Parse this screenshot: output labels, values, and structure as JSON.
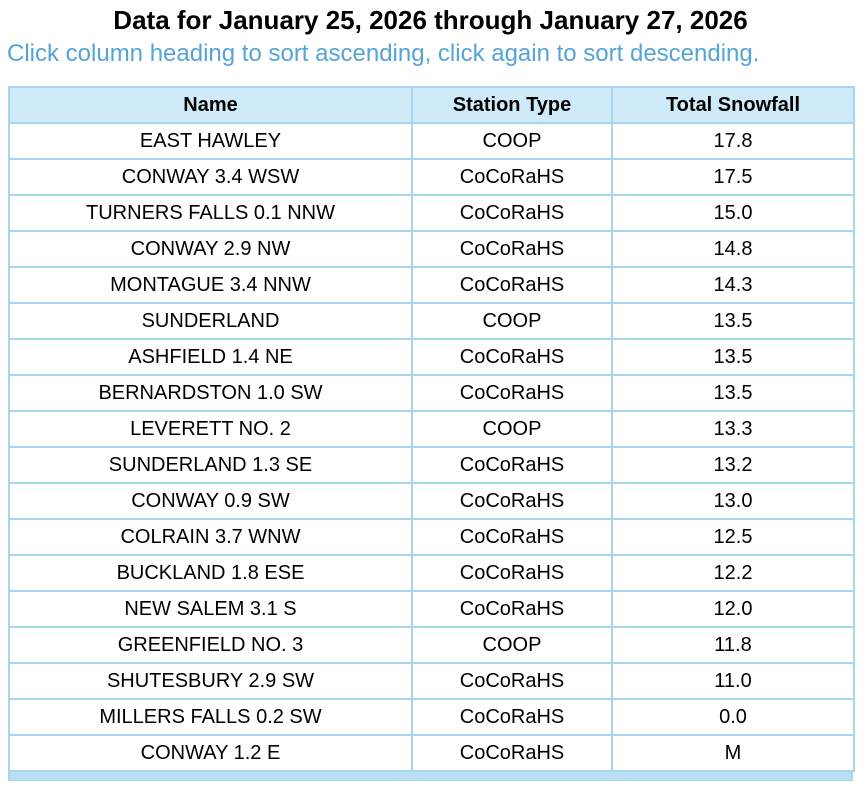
{
  "header": {
    "title": "Data for January 25, 2026 through January 27, 2026",
    "subtitle": "Click column heading to sort ascending, click again to sort descending."
  },
  "table": {
    "columns": [
      "Name",
      "Station Type",
      "Total Snowfall"
    ],
    "rows": [
      {
        "name": "EAST HAWLEY",
        "station_type": "COOP",
        "total_snowfall": "17.8"
      },
      {
        "name": "CONWAY 3.4 WSW",
        "station_type": "CoCoRaHS",
        "total_snowfall": "17.5"
      },
      {
        "name": "TURNERS FALLS 0.1 NNW",
        "station_type": "CoCoRaHS",
        "total_snowfall": "15.0"
      },
      {
        "name": "CONWAY 2.9 NW",
        "station_type": "CoCoRaHS",
        "total_snowfall": "14.8"
      },
      {
        "name": "MONTAGUE 3.4 NNW",
        "station_type": "CoCoRaHS",
        "total_snowfall": "14.3"
      },
      {
        "name": "SUNDERLAND",
        "station_type": "COOP",
        "total_snowfall": "13.5"
      },
      {
        "name": "ASHFIELD 1.4 NE",
        "station_type": "CoCoRaHS",
        "total_snowfall": "13.5"
      },
      {
        "name": "BERNARDSTON 1.0 SW",
        "station_type": "CoCoRaHS",
        "total_snowfall": "13.5"
      },
      {
        "name": "LEVERETT NO. 2",
        "station_type": "COOP",
        "total_snowfall": "13.3"
      },
      {
        "name": "SUNDERLAND 1.3 SE",
        "station_type": "CoCoRaHS",
        "total_snowfall": "13.2"
      },
      {
        "name": "CONWAY 0.9 SW",
        "station_type": "CoCoRaHS",
        "total_snowfall": "13.0"
      },
      {
        "name": "COLRAIN 3.7 WNW",
        "station_type": "CoCoRaHS",
        "total_snowfall": "12.5"
      },
      {
        "name": "BUCKLAND 1.8 ESE",
        "station_type": "CoCoRaHS",
        "total_snowfall": "12.2"
      },
      {
        "name": "NEW SALEM 3.1 S",
        "station_type": "CoCoRaHS",
        "total_snowfall": "12.0"
      },
      {
        "name": "GREENFIELD NO. 3",
        "station_type": "COOP",
        "total_snowfall": "11.8"
      },
      {
        "name": "SHUTESBURY 2.9 SW",
        "station_type": "CoCoRaHS",
        "total_snowfall": "11.0"
      },
      {
        "name": "MILLERS FALLS 0.2 SW",
        "station_type": "CoCoRaHS",
        "total_snowfall": "0.0"
      },
      {
        "name": "CONWAY 1.2 E",
        "station_type": "CoCoRaHS",
        "total_snowfall": "M"
      }
    ]
  },
  "colors": {
    "title_text": "#000000",
    "subtitle_text": "#56a4d6",
    "header_background": "#cfeaf8",
    "table_border": "#a6d6ee",
    "bottom_bar": "#b9dff2",
    "row_background": "#ffffff",
    "cell_text": "#000000"
  }
}
